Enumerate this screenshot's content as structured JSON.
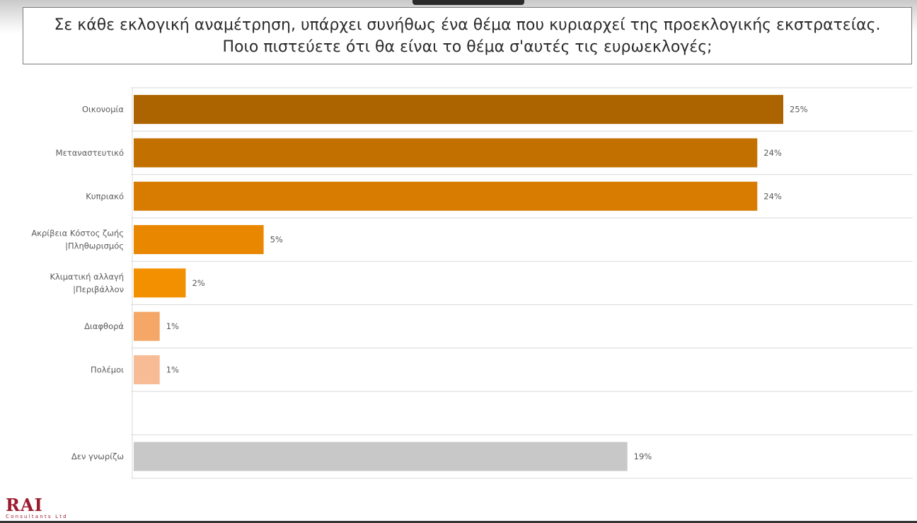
{
  "title": {
    "line1": "Σε κάθε εκλογική αναμέτρηση, υπάρχει συνήθως ένα θέμα που κυριαρχεί της προεκλογικής εκστρατείας.",
    "line2": "Ποιο πιστεύετε ότι θα είναι το θέμα σ'αυτές τις ευρωεκλογές;"
  },
  "logo": {
    "main": "RAI",
    "sub": "Consultants Ltd"
  },
  "chart_data": {
    "type": "bar",
    "orientation": "horizontal",
    "categories": [
      [
        "Οικονομία"
      ],
      [
        "Μεταναστευτικό"
      ],
      [
        "Κυπριακό"
      ],
      [
        "Ακρίβεια Κόστος ζωής",
        "|Πληθωρισμός"
      ],
      [
        "Κλιματική αλλαγή",
        "|Περιβάλλον"
      ],
      [
        "Διαφθορά"
      ],
      [
        "Πολέμοι"
      ],
      [
        ""
      ],
      [
        "Δεν γνωρίζω"
      ]
    ],
    "values": [
      25,
      24,
      24,
      5,
      2,
      1,
      1,
      null,
      19
    ],
    "data_labels": [
      "25%",
      "24%",
      "24%",
      "5%",
      "2%",
      "1%",
      "1%",
      "",
      "19%"
    ],
    "colors": [
      "#ac6400",
      "#c27100",
      "#d77c00",
      "#e98700",
      "#f39000",
      "#f4a766",
      "#f7bb96",
      "#ffffff",
      "#c8c8c8"
    ],
    "gridline_color": "#d9d9d9",
    "xlim": [
      0,
      25
    ],
    "title": "Σε κάθε εκλογική αναμέτρηση, υπάρχει συνήθως ένα θέμα που κυριαρχεί της προεκλογικής εκστρατείας. Ποιο πιστεύετε ότι θα είναι το θέμα σ'αυτές τις ευρωεκλογές;",
    "xlabel": "",
    "ylabel": "",
    "grid": true,
    "legend": "none"
  }
}
